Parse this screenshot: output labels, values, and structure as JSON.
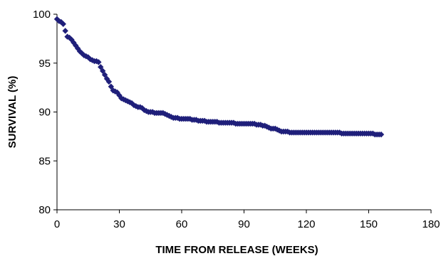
{
  "chart_data": {
    "type": "scatter",
    "title": "",
    "xlabel": "TIME FROM RELEASE (WEEKS)",
    "ylabel": "SURVIVAL (%)",
    "xlim": [
      0,
      180
    ],
    "ylim": [
      80,
      100
    ],
    "xticks": [
      "0",
      "30",
      "60",
      "90",
      "120",
      "150",
      "180"
    ],
    "yticks": [
      "80",
      "85",
      "90",
      "95",
      "100"
    ],
    "grid": false,
    "legend": "none",
    "marker": "diamond",
    "marker_color": "#1f1f7a",
    "series": [
      {
        "x": [
          0,
          1,
          2,
          3,
          4,
          5,
          6,
          7,
          8,
          9,
          10,
          11,
          12,
          13,
          14,
          15,
          16,
          17,
          18,
          19,
          20,
          21,
          22,
          23,
          24,
          25,
          26,
          27,
          28,
          29,
          30,
          31,
          32,
          33,
          34,
          35,
          36,
          37,
          38,
          39,
          40,
          41,
          42,
          43,
          44,
          45,
          46,
          47,
          48,
          49,
          50,
          51,
          52,
          53,
          54,
          55,
          56,
          57,
          58,
          59,
          60,
          61,
          62,
          63,
          64,
          65,
          66,
          67,
          68,
          69,
          70,
          71,
          72,
          73,
          74,
          75,
          76,
          77,
          78,
          79,
          80,
          81,
          82,
          83,
          84,
          85,
          86,
          87,
          88,
          89,
          90,
          91,
          92,
          93,
          94,
          95,
          96,
          97,
          98,
          99,
          100,
          101,
          102,
          103,
          104,
          105,
          106,
          107,
          108,
          109,
          110,
          111,
          112,
          113,
          114,
          115,
          116,
          117,
          118,
          119,
          120,
          121,
          122,
          123,
          124,
          125,
          126,
          127,
          128,
          129,
          130,
          131,
          132,
          133,
          134,
          135,
          136,
          137,
          138,
          139,
          140,
          141,
          142,
          143,
          144,
          145,
          146,
          147,
          148,
          149,
          150,
          151,
          152,
          153,
          154,
          155,
          156
        ],
        "y": [
          99.5,
          99.3,
          99.2,
          99.0,
          98.3,
          97.7,
          97.6,
          97.4,
          97.1,
          96.8,
          96.5,
          96.2,
          96.0,
          95.8,
          95.7,
          95.6,
          95.4,
          95.3,
          95.2,
          95.2,
          95.1,
          94.6,
          94.2,
          93.8,
          93.4,
          93.1,
          92.6,
          92.2,
          92.1,
          92.0,
          91.7,
          91.4,
          91.3,
          91.2,
          91.1,
          91.0,
          90.9,
          90.7,
          90.6,
          90.5,
          90.5,
          90.4,
          90.2,
          90.1,
          90.0,
          90.0,
          90.0,
          89.9,
          89.9,
          89.9,
          89.9,
          89.9,
          89.8,
          89.7,
          89.6,
          89.5,
          89.4,
          89.4,
          89.4,
          89.3,
          89.3,
          89.3,
          89.3,
          89.3,
          89.3,
          89.2,
          89.2,
          89.2,
          89.1,
          89.1,
          89.1,
          89.1,
          89.0,
          89.0,
          89.0,
          89.0,
          89.0,
          89.0,
          88.9,
          88.9,
          88.9,
          88.9,
          88.9,
          88.9,
          88.9,
          88.9,
          88.8,
          88.8,
          88.8,
          88.8,
          88.8,
          88.8,
          88.8,
          88.8,
          88.8,
          88.8,
          88.7,
          88.7,
          88.7,
          88.6,
          88.6,
          88.5,
          88.4,
          88.3,
          88.3,
          88.3,
          88.2,
          88.1,
          88.0,
          88.0,
          88.0,
          88.0,
          87.9,
          87.9,
          87.9,
          87.9,
          87.9,
          87.9,
          87.9,
          87.9,
          87.9,
          87.9,
          87.9,
          87.9,
          87.9,
          87.9,
          87.9,
          87.9,
          87.9,
          87.9,
          87.9,
          87.9,
          87.9,
          87.9,
          87.9,
          87.9,
          87.9,
          87.8,
          87.8,
          87.8,
          87.8,
          87.8,
          87.8,
          87.8,
          87.8,
          87.8,
          87.8,
          87.8,
          87.8,
          87.8,
          87.8,
          87.8,
          87.8,
          87.7,
          87.7,
          87.7,
          87.7
        ]
      }
    ]
  }
}
